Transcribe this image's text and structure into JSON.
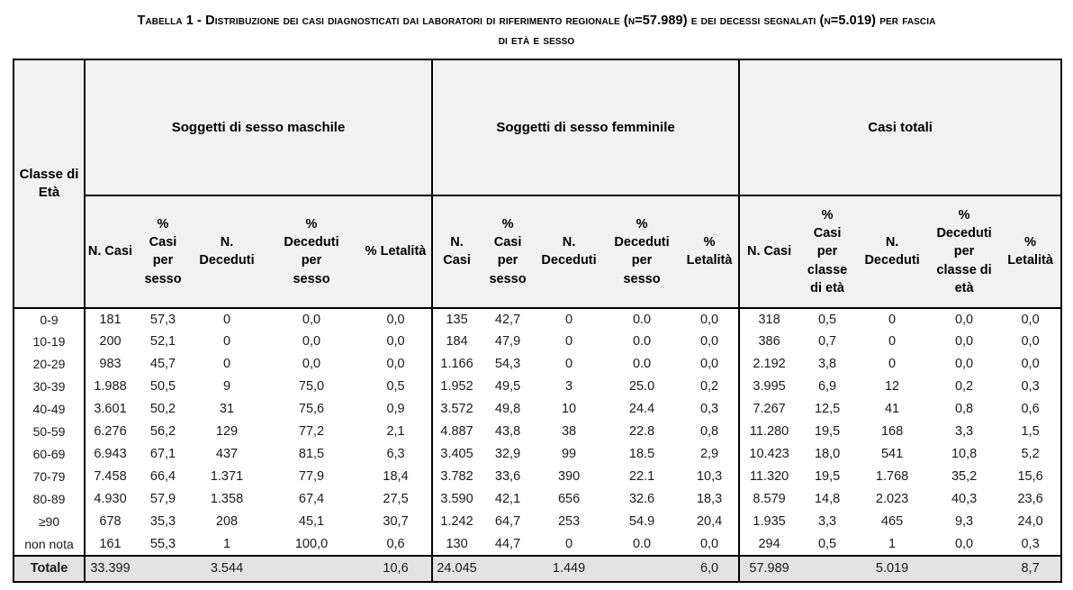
{
  "title": {
    "line1": "Tabella 1 - Distribuzione dei casi diagnosticati dai laboratori di riferimento regionale (n=57.989) e dei decessi segnalati (n=5.019) per fascia",
    "line2": "di età e sesso"
  },
  "colors": {
    "header_bg": "#f1f1f1",
    "total_row_bg": "#e3e3e3",
    "border": "#000000",
    "text": "#1a1a1a",
    "page_bg": "#ffffff"
  },
  "table": {
    "corner_header": "Classe di\nEtà",
    "groups": [
      {
        "label": "Soggetti di sesso maschile"
      },
      {
        "label": "Soggetti di sesso femminile"
      },
      {
        "label": "Casi totali"
      }
    ],
    "subheaders": [
      "N. Casi",
      "%\nCasi\nper\nsesso",
      "N. Deceduti",
      "%\nDeceduti\nper\nsesso",
      "% Letalità",
      "N.\nCasi",
      "%\nCasi\nper\nsesso",
      "N.\nDeceduti",
      "%\nDeceduti\nper\nsesso",
      "%\nLetalità",
      "N. Casi",
      "%\nCasi\nper\nclasse\ndi età",
      "N.\nDeceduti",
      "%\nDeceduti\nper\nclasse di\netà",
      "%\nLetalità"
    ],
    "rows": [
      {
        "age": "0-9",
        "cells": [
          "181",
          "57,3",
          "0",
          "0,0",
          "0,0",
          "135",
          "42,7",
          "0",
          "0.0",
          "0,0",
          "318",
          "0,5",
          "0",
          "0,0",
          "0,0"
        ]
      },
      {
        "age": "10-19",
        "cells": [
          "200",
          "52,1",
          "0",
          "0,0",
          "0,0",
          "184",
          "47,9",
          "0",
          "0.0",
          "0,0",
          "386",
          "0,7",
          "0",
          "0,0",
          "0,0"
        ]
      },
      {
        "age": "20-29",
        "cells": [
          "983",
          "45,7",
          "0",
          "0,0",
          "0,0",
          "1.166",
          "54,3",
          "0",
          "0.0",
          "0,0",
          "2.192",
          "3,8",
          "0",
          "0,0",
          "0,0"
        ]
      },
      {
        "age": "30-39",
        "cells": [
          "1.988",
          "50,5",
          "9",
          "75,0",
          "0,5",
          "1.952",
          "49,5",
          "3",
          "25.0",
          "0,2",
          "3.995",
          "6,9",
          "12",
          "0,2",
          "0,3"
        ]
      },
      {
        "age": "40-49",
        "cells": [
          "3.601",
          "50,2",
          "31",
          "75,6",
          "0,9",
          "3.572",
          "49,8",
          "10",
          "24.4",
          "0,3",
          "7.267",
          "12,5",
          "41",
          "0,8",
          "0,6"
        ]
      },
      {
        "age": "50-59",
        "cells": [
          "6.276",
          "56,2",
          "129",
          "77,2",
          "2,1",
          "4.887",
          "43,8",
          "38",
          "22.8",
          "0,8",
          "11.280",
          "19,5",
          "168",
          "3,3",
          "1,5"
        ]
      },
      {
        "age": "60-69",
        "cells": [
          "6.943",
          "67,1",
          "437",
          "81,5",
          "6,3",
          "3.405",
          "32,9",
          "99",
          "18.5",
          "2,9",
          "10.423",
          "18,0",
          "541",
          "10,8",
          "5,2"
        ]
      },
      {
        "age": "70-79",
        "cells": [
          "7.458",
          "66,4",
          "1.371",
          "77,9",
          "18,4",
          "3.782",
          "33,6",
          "390",
          "22.1",
          "10,3",
          "11.320",
          "19,5",
          "1.768",
          "35,2",
          "15,6"
        ]
      },
      {
        "age": "80-89",
        "cells": [
          "4.930",
          "57,9",
          "1.358",
          "67,4",
          "27,5",
          "3.590",
          "42,1",
          "656",
          "32.6",
          "18,3",
          "8.579",
          "14,8",
          "2.023",
          "40,3",
          "23,6"
        ]
      },
      {
        "age": "≥90",
        "cells": [
          "678",
          "35,3",
          "208",
          "45,1",
          "30,7",
          "1.242",
          "64,7",
          "253",
          "54.9",
          "20,4",
          "1.935",
          "3,3",
          "465",
          "9,3",
          "24,0"
        ]
      },
      {
        "age": "non nota",
        "cells": [
          "161",
          "55,3",
          "1",
          "100,0",
          "0,6",
          "130",
          "44,7",
          "0",
          "0.0",
          "0,0",
          "294",
          "0,5",
          "1",
          "0,0",
          "0,3"
        ]
      }
    ],
    "total_row": {
      "label": "Totale",
      "cells": [
        "33.399",
        "",
        "3.544",
        "",
        "10,6",
        "24.045",
        "",
        "1.449",
        "",
        "6,0",
        "57.989",
        "",
        "5.019",
        "",
        "8,7"
      ]
    }
  }
}
